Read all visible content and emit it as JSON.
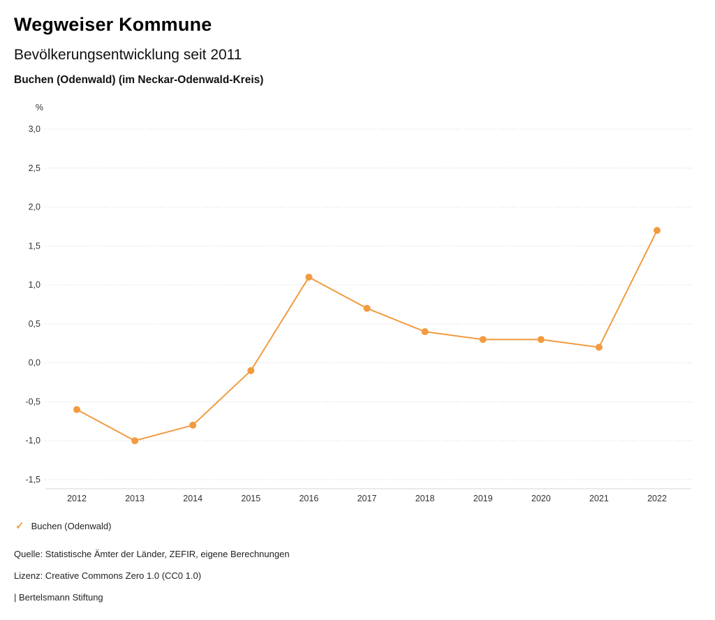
{
  "header": {
    "title": "Wegweiser Kommune",
    "subtitle": "Bevölkerungsentwicklung seit 2011",
    "region": "Buchen (Odenwald) (im Neckar-Odenwald-Kreis)"
  },
  "chart_data": {
    "type": "line",
    "title": "Bevölkerungsentwicklung seit 2011",
    "unit_label": "%",
    "categories": [
      "2012",
      "2013",
      "2014",
      "2015",
      "2016",
      "2017",
      "2018",
      "2019",
      "2020",
      "2021",
      "2022"
    ],
    "series": [
      {
        "name": "Buchen (Odenwald)",
        "values": [
          -0.6,
          -1.0,
          -0.8,
          -0.1,
          1.1,
          0.7,
          0.4,
          0.3,
          0.3,
          0.2,
          1.7
        ]
      }
    ],
    "ylim": [
      -1.5,
      3.0
    ],
    "ytick_step": 0.5,
    "ytick_format": "german-comma-1-decimal",
    "grid": "dotted horizontal gridlines",
    "legend_position": "bottom-left",
    "line_color": "#F29B40",
    "marker": "filled-circle"
  },
  "legend": {
    "items": [
      {
        "label": "Buchen (Odenwald)",
        "color": "#F29B40",
        "icon": "check-icon",
        "marker_glyph": "✓"
      }
    ]
  },
  "footer": {
    "source": "Quelle: Statistische Ämter der Länder, ZEFIR, eigene Berechnungen",
    "license": "Lizenz: Creative Commons Zero 1.0 (CC0 1.0)",
    "attribution": "| Bertelsmann Stiftung"
  }
}
